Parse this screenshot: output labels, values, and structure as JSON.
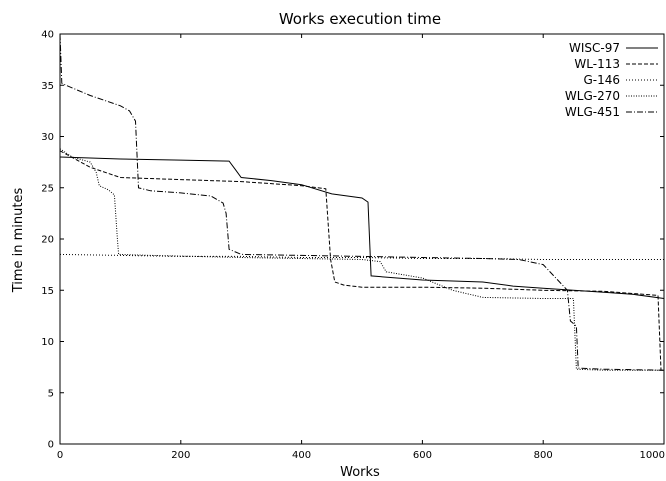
{
  "chart_data": {
    "type": "line",
    "title": "Works execution time",
    "xlabel": "Works",
    "ylabel": "Time in minutes",
    "xlim": [
      0,
      1000
    ],
    "ylim": [
      0,
      40
    ],
    "xticks": [
      0,
      200,
      400,
      600,
      800,
      1000
    ],
    "xtick_labels": [
      "0",
      "200",
      "400",
      "600",
      "800",
      "1000"
    ],
    "yticks": [
      0,
      5,
      10,
      15,
      20,
      25,
      30,
      35,
      40
    ],
    "ytick_labels": [
      "0",
      "5",
      "10",
      "15",
      "20",
      "25",
      "30",
      "35",
      "40"
    ],
    "grid": false,
    "legend_position": "top-right",
    "series": [
      {
        "name": "WISC-97",
        "dash": "solid",
        "points": [
          [
            0,
            28.0
          ],
          [
            100,
            27.8
          ],
          [
            200,
            27.7
          ],
          [
            280,
            27.6
          ],
          [
            290,
            26.8
          ],
          [
            300,
            26.0
          ],
          [
            350,
            25.7
          ],
          [
            400,
            25.3
          ],
          [
            450,
            24.4
          ],
          [
            500,
            24.0
          ],
          [
            510,
            23.6
          ],
          [
            515,
            16.4
          ],
          [
            600,
            16.0
          ],
          [
            700,
            15.8
          ],
          [
            750,
            15.4
          ],
          [
            800,
            15.2
          ],
          [
            850,
            15.0
          ],
          [
            900,
            14.8
          ],
          [
            950,
            14.6
          ],
          [
            1000,
            14.2
          ]
        ]
      },
      {
        "name": "WL-113",
        "dash": "dashed",
        "points": [
          [
            0,
            28.6
          ],
          [
            50,
            27.0
          ],
          [
            100,
            26.0
          ],
          [
            200,
            25.8
          ],
          [
            300,
            25.6
          ],
          [
            400,
            25.2
          ],
          [
            440,
            24.9
          ],
          [
            448,
            18.0
          ],
          [
            455,
            15.8
          ],
          [
            470,
            15.5
          ],
          [
            500,
            15.3
          ],
          [
            600,
            15.3
          ],
          [
            700,
            15.2
          ],
          [
            800,
            15.0
          ],
          [
            900,
            14.9
          ],
          [
            990,
            14.5
          ],
          [
            995,
            7.2
          ],
          [
            1000,
            7.2
          ]
        ]
      },
      {
        "name": "G-146",
        "dash": "dotted",
        "points": [
          [
            0,
            18.5
          ],
          [
            100,
            18.4
          ],
          [
            200,
            18.3
          ],
          [
            300,
            18.3
          ],
          [
            400,
            18.2
          ],
          [
            500,
            18.2
          ],
          [
            600,
            18.1
          ],
          [
            700,
            18.1
          ],
          [
            800,
            18.0
          ],
          [
            900,
            18.0
          ],
          [
            1000,
            18.0
          ]
        ]
      },
      {
        "name": "WLG-270",
        "dash": "dotted2",
        "points": [
          [
            0,
            28.8
          ],
          [
            20,
            28.0
          ],
          [
            50,
            27.5
          ],
          [
            60,
            26.5
          ],
          [
            65,
            25.2
          ],
          [
            80,
            24.8
          ],
          [
            90,
            24.3
          ],
          [
            95,
            20.0
          ],
          [
            97,
            18.5
          ],
          [
            150,
            18.4
          ],
          [
            300,
            18.2
          ],
          [
            400,
            18.1
          ],
          [
            500,
            18.0
          ],
          [
            530,
            17.8
          ],
          [
            540,
            16.8
          ],
          [
            600,
            16.2
          ],
          [
            650,
            15.0
          ],
          [
            700,
            14.3
          ],
          [
            800,
            14.2
          ],
          [
            850,
            14.2
          ],
          [
            855,
            7.3
          ],
          [
            900,
            7.2
          ],
          [
            1000,
            7.2
          ]
        ]
      },
      {
        "name": "WLG-451",
        "dash": "dashdot",
        "points": [
          [
            0,
            40.0
          ],
          [
            3,
            35.2
          ],
          [
            10,
            35.0
          ],
          [
            50,
            34.0
          ],
          [
            100,
            33.0
          ],
          [
            115,
            32.5
          ],
          [
            125,
            31.5
          ],
          [
            130,
            25.0
          ],
          [
            150,
            24.7
          ],
          [
            200,
            24.5
          ],
          [
            250,
            24.2
          ],
          [
            270,
            23.5
          ],
          [
            275,
            22.5
          ],
          [
            280,
            19.0
          ],
          [
            300,
            18.5
          ],
          [
            400,
            18.4
          ],
          [
            500,
            18.3
          ],
          [
            600,
            18.2
          ],
          [
            700,
            18.1
          ],
          [
            760,
            18.0
          ],
          [
            800,
            17.5
          ],
          [
            840,
            15.0
          ],
          [
            845,
            12.0
          ],
          [
            855,
            11.5
          ],
          [
            858,
            7.4
          ],
          [
            900,
            7.3
          ],
          [
            1000,
            7.2
          ]
        ]
      }
    ]
  }
}
